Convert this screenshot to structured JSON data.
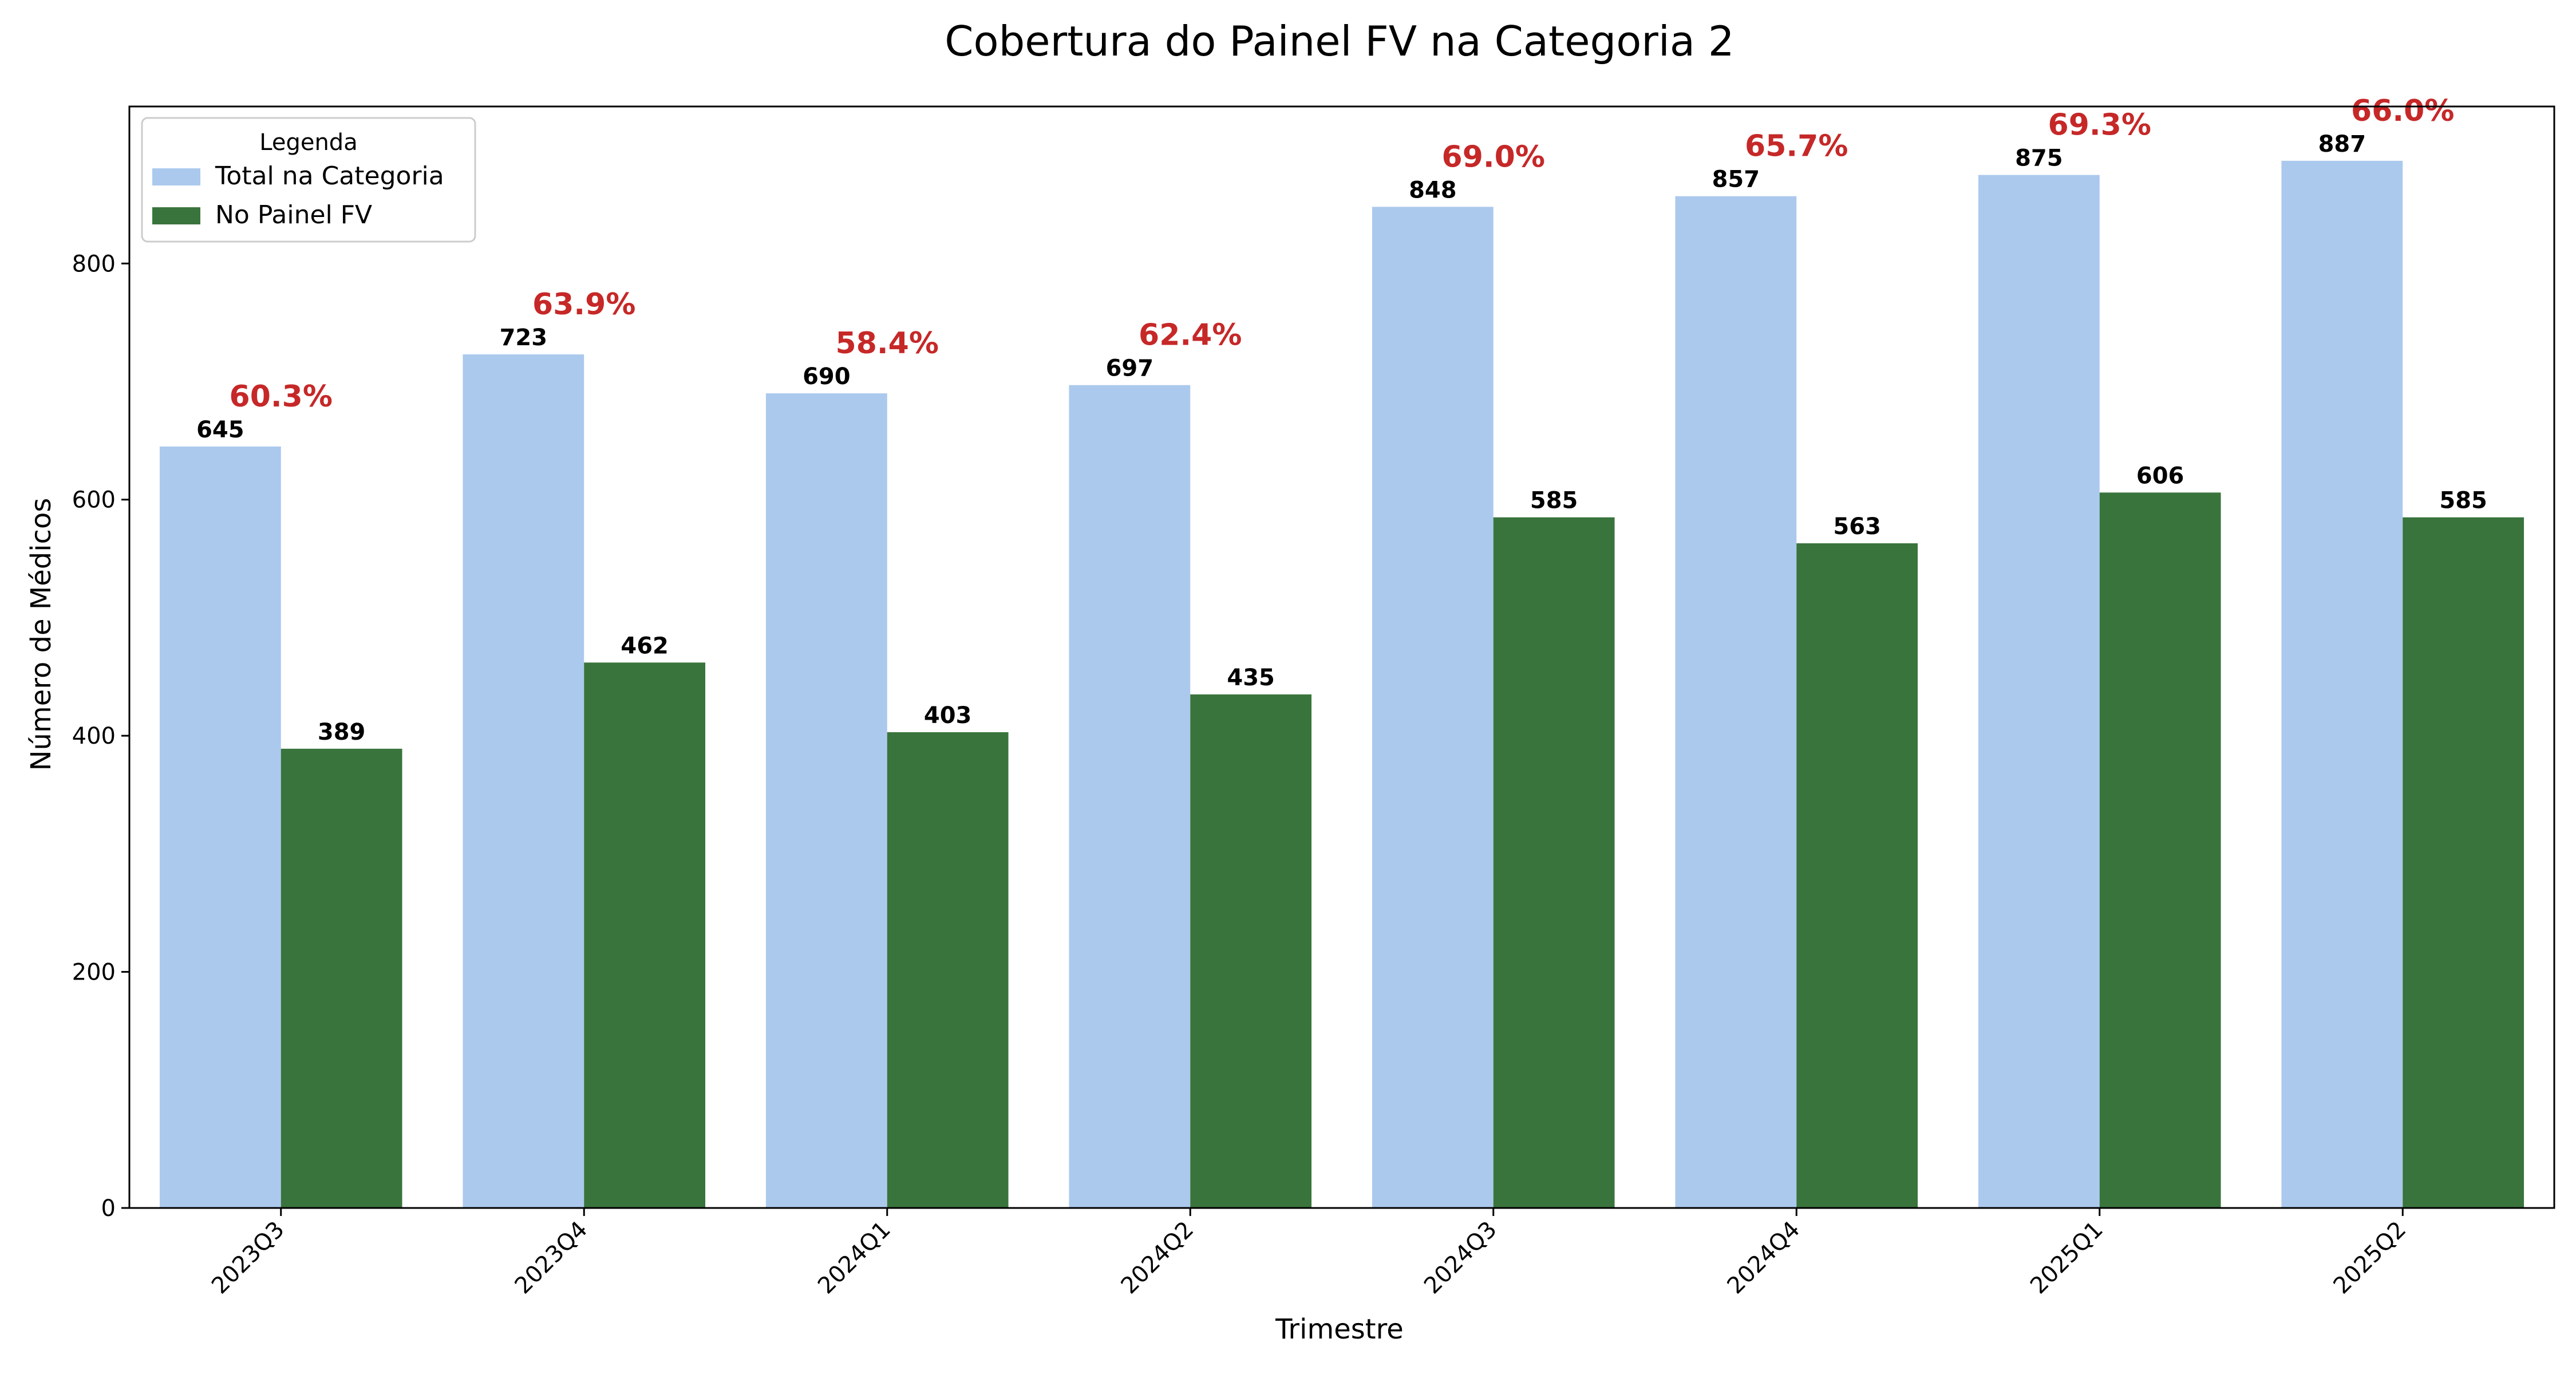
{
  "chart_data": {
    "type": "bar",
    "title": "Cobertura do Painel FV na Categoria 2",
    "xlabel": "Trimestre",
    "ylabel": "Número de Médicos",
    "categories": [
      "2023Q3",
      "2023Q4",
      "2024Q1",
      "2024Q2",
      "2024Q3",
      "2024Q4",
      "2025Q1",
      "2025Q2"
    ],
    "series": [
      {
        "name": "Total na Categoria",
        "color": "#abc9ed",
        "values": [
          645,
          723,
          690,
          697,
          848,
          857,
          875,
          887
        ]
      },
      {
        "name": "No Painel FV",
        "color": "#39743c",
        "values": [
          389,
          462,
          403,
          435,
          585,
          563,
          606,
          585
        ]
      }
    ],
    "coverage_labels": [
      "60.3%",
      "63.9%",
      "58.4%",
      "62.4%",
      "69.0%",
      "65.7%",
      "69.3%",
      "66.0%"
    ],
    "coverage_color": "#c62828",
    "ylim": [
      0,
      933
    ],
    "yticks": [
      0,
      200,
      400,
      600,
      800
    ],
    "legend": {
      "title": "Legenda",
      "placement": "top-left"
    },
    "grid": false
  }
}
